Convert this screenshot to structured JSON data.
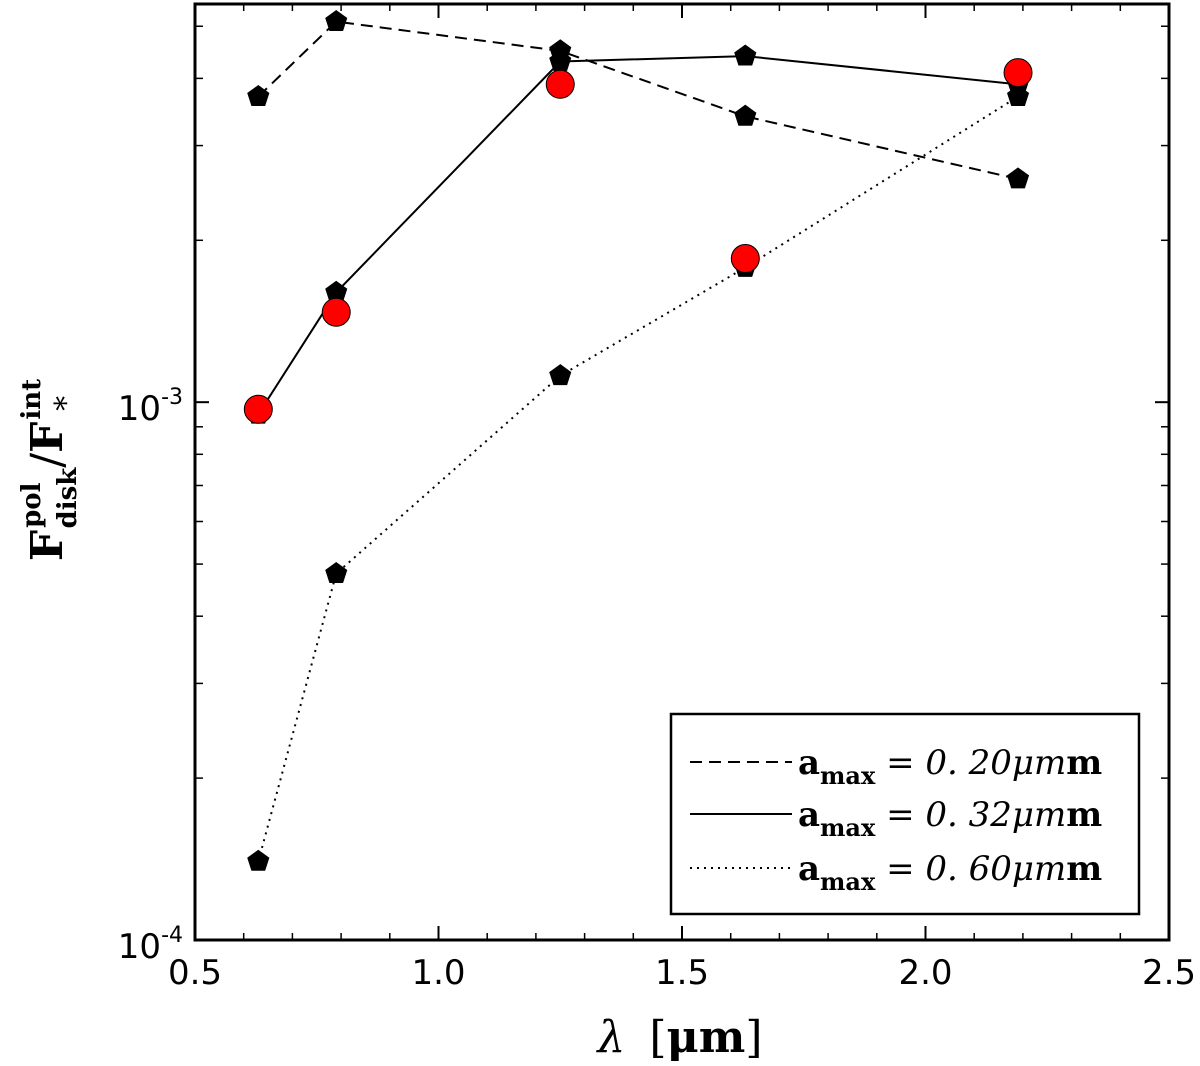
{
  "chart_data": {
    "type": "line",
    "xlabel": {
      "main": "λ",
      "unit": "μm",
      "open": "[",
      "close": "]"
    },
    "ylabel": {
      "base": "F",
      "sup": "pol",
      "sub": "disk",
      "slash": "/",
      "base2": "F",
      "sup2": "int",
      "sub2": "*"
    },
    "xlim": [
      0.5,
      2.5
    ],
    "ylim": [
      0.0001,
      0.0055
    ],
    "yscale": "log",
    "grid": false,
    "legend_position": "lower-right",
    "x_ticks": [
      {
        "value": 0.5,
        "label": "0.5"
      },
      {
        "value": 1.0,
        "label": "1.0"
      },
      {
        "value": 1.5,
        "label": "1.5"
      },
      {
        "value": 2.0,
        "label": "2.0"
      },
      {
        "value": 2.5,
        "label": "2.5"
      }
    ],
    "y_major_ticks": [
      {
        "value": 0.001,
        "base": "10",
        "exp": "-3"
      },
      {
        "value": 0.0001,
        "base": "10",
        "exp": "-4"
      }
    ],
    "series": [
      {
        "name": "a_max = 0.20μm",
        "label_bold": "a",
        "label_sub": "max",
        "label_rest": " = 0. 20μm",
        "label_unit": "m",
        "linestyle": "dashed",
        "x": [
          0.63,
          0.79,
          1.25,
          1.63,
          2.19
        ],
        "y": [
          0.0037,
          0.0051,
          0.0045,
          0.0034,
          0.0026
        ],
        "marker": "pentagon",
        "color": "#000000"
      },
      {
        "name": "a_max = 0.32μm",
        "label_bold": "a",
        "label_sub": "max",
        "label_rest": " = 0. 32μm",
        "label_unit": "m",
        "linestyle": "solid",
        "x": [
          0.63,
          0.79,
          1.25,
          1.63,
          2.19
        ],
        "y": [
          0.00095,
          0.0016,
          0.0043,
          0.0044,
          0.0039
        ],
        "marker": "pentagon",
        "color": "#000000"
      },
      {
        "name": "a_max = 0.60μm",
        "label_bold": "a",
        "label_sub": "max",
        "label_rest": " = 0. 60μm",
        "label_unit": "m",
        "linestyle": "dotted",
        "x": [
          0.63,
          0.79,
          1.25,
          1.63,
          2.19
        ],
        "y": [
          0.00014,
          0.00048,
          0.00112,
          0.00178,
          0.0037
        ],
        "marker": "pentagon",
        "color": "#000000"
      }
    ],
    "observations": {
      "marker": "circle",
      "color": "#ff0000",
      "x": [
        0.63,
        0.79,
        1.25,
        1.63,
        2.19
      ],
      "y": [
        0.00097,
        0.00147,
        0.0039,
        0.00185,
        0.0041
      ]
    }
  }
}
